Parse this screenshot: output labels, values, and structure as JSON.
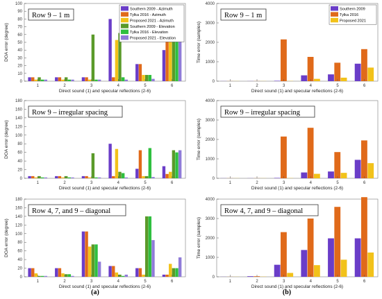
{
  "subfigure_labels": [
    "(a)",
    "(b)"
  ],
  "chart_data": [
    {
      "type": "bar",
      "title": "Row 9 – 1 m",
      "xlabel": "Direct sound (1) and specular reflections (2-6)",
      "ylabel": "DOA error (degree)",
      "categories": [
        "1",
        "2",
        "3",
        "4",
        "5",
        "6"
      ],
      "ylim": [
        0,
        100
      ],
      "yticks": [
        0,
        10,
        20,
        30,
        40,
        50,
        60,
        70,
        80,
        90,
        100
      ],
      "grid": false,
      "legend": "top-right",
      "series": [
        {
          "name": "Southern 2009 - Azimuth",
          "color": "#6a3dc8",
          "values": [
            5,
            5,
            5,
            80,
            22,
            40
          ]
        },
        {
          "name": "Tylka 2016 - Azimuth",
          "color": "#e06a1a",
          "values": [
            5,
            5,
            5,
            5,
            22,
            80
          ]
        },
        {
          "name": "Proposed 2021 - Azimuth",
          "color": "#f2c21a",
          "values": [
            2,
            2,
            2,
            53,
            8,
            65
          ]
        },
        {
          "name": "Southern 2009 - Elevation",
          "color": "#5a9a2a",
          "values": [
            5,
            5,
            60,
            62,
            8,
            62
          ]
        },
        {
          "name": "Tylka 2016 - Elevation",
          "color": "#2fbf3f",
          "values": [
            2,
            2,
            2,
            5,
            8,
            62
          ]
        },
        {
          "name": "Proposed 2021 - Elevation",
          "color": "#8f7bd8",
          "values": [
            2,
            2,
            2,
            2,
            3,
            62
          ]
        }
      ]
    },
    {
      "type": "bar",
      "title": "Row 9 – 1 m",
      "xlabel": "Direct sound (1) and specular reflections (2-6)",
      "ylabel": "Time error (samples)",
      "categories": [
        "1",
        "2",
        "3",
        "4",
        "5",
        "6"
      ],
      "ylim": [
        0,
        4000
      ],
      "yticks": [
        0,
        1000,
        2000,
        3000,
        4000
      ],
      "grid": false,
      "legend": "top-right",
      "series": [
        {
          "name": "Southern 2009",
          "color": "#6a3dc8",
          "values": [
            5,
            5,
            20,
            300,
            350,
            900
          ]
        },
        {
          "name": "Tylka 2016",
          "color": "#e06a1a",
          "values": [
            5,
            5,
            2150,
            1250,
            950,
            1650
          ]
        },
        {
          "name": "Proposed 2021",
          "color": "#f2c21a",
          "values": [
            5,
            5,
            10,
            120,
            180,
            700
          ]
        }
      ]
    },
    {
      "type": "bar",
      "title": "Row 9 – irregular spacing",
      "xlabel": "Direct sound (1) and specular reflections (2-6)",
      "ylabel": "DOA error (degree)",
      "categories": [
        "1",
        "2",
        "3",
        "4",
        "5",
        "6"
      ],
      "ylim": [
        0,
        180
      ],
      "yticks": [
        0,
        20,
        40,
        60,
        80,
        100,
        120,
        140,
        160,
        180
      ],
      "grid": false,
      "legend": "none",
      "series": [
        {
          "name": "",
          "color": "#6a3dc8",
          "values": [
            5,
            5,
            5,
            80,
            22,
            28
          ]
        },
        {
          "name": "",
          "color": "#e06a1a",
          "values": [
            5,
            5,
            5,
            5,
            65,
            10
          ]
        },
        {
          "name": "",
          "color": "#f2c21a",
          "values": [
            2,
            2,
            2,
            68,
            5,
            15
          ]
        },
        {
          "name": "",
          "color": "#5a9a2a",
          "values": [
            5,
            5,
            58,
            15,
            5,
            65
          ]
        },
        {
          "name": "",
          "color": "#2fbf3f",
          "values": [
            2,
            2,
            2,
            12,
            70,
            60
          ]
        },
        {
          "name": "",
          "color": "#8f7bd8",
          "values": [
            2,
            2,
            2,
            2,
            3,
            65
          ]
        }
      ]
    },
    {
      "type": "bar",
      "title": "Row 9 – irregular spacing",
      "xlabel": "Direct sound (1) and specular reflections (2-6)",
      "ylabel": "Time error (samples)",
      "categories": [
        "1",
        "2",
        "3",
        "4",
        "5",
        "6"
      ],
      "ylim": [
        0,
        4000
      ],
      "yticks": [
        0,
        1000,
        2000,
        3000,
        4000
      ],
      "grid": false,
      "legend": "none",
      "series": [
        {
          "name": "",
          "color": "#6a3dc8",
          "values": [
            5,
            5,
            20,
            300,
            350,
            950
          ]
        },
        {
          "name": "",
          "color": "#e06a1a",
          "values": [
            5,
            5,
            2150,
            2600,
            1350,
            1950
          ]
        },
        {
          "name": "",
          "color": "#f2c21a",
          "values": [
            5,
            5,
            10,
            230,
            280,
            780
          ]
        }
      ]
    },
    {
      "type": "bar",
      "title": "Row 4, 7, and 9 – diagonal",
      "xlabel": "Direct sound (1) and specular reflections (2-6)",
      "ylabel": "DOA error (degree)",
      "categories": [
        "1",
        "2",
        "3",
        "4",
        "5",
        "6"
      ],
      "ylim": [
        0,
        180
      ],
      "yticks": [
        0,
        20,
        40,
        60,
        80,
        100,
        120,
        140,
        160,
        180
      ],
      "grid": false,
      "legend": "none",
      "series": [
        {
          "name": "",
          "color": "#6a3dc8",
          "values": [
            20,
            20,
            105,
            25,
            20,
            5
          ]
        },
        {
          "name": "",
          "color": "#e06a1a",
          "values": [
            20,
            20,
            105,
            25,
            20,
            5
          ]
        },
        {
          "name": "",
          "color": "#f2c21a",
          "values": [
            8,
            8,
            70,
            10,
            5,
            30
          ]
        },
        {
          "name": "",
          "color": "#5a9a2a",
          "values": [
            2,
            6,
            75,
            5,
            140,
            20
          ]
        },
        {
          "name": "",
          "color": "#2fbf3f",
          "values": [
            2,
            6,
            75,
            2,
            140,
            20
          ]
        },
        {
          "name": "",
          "color": "#8f7bd8",
          "values": [
            2,
            2,
            35,
            5,
            85,
            45
          ]
        }
      ]
    },
    {
      "type": "bar",
      "title": "Row 4, 7, and 9 – diagonal",
      "xlabel": "Direct sound (1) and specular reflections (2-6)",
      "ylabel": "Time error (samples)",
      "categories": [
        "1",
        "2",
        "3",
        "4",
        "5",
        "6"
      ],
      "ylim": [
        0,
        4000
      ],
      "yticks": [
        0,
        1000,
        2000,
        3000,
        4000
      ],
      "grid": false,
      "legend": "none",
      "series": [
        {
          "name": "",
          "color": "#6a3dc8",
          "values": [
            5,
            30,
            620,
            1380,
            1980,
            1980
          ]
        },
        {
          "name": "",
          "color": "#e06a1a",
          "values": [
            5,
            30,
            2300,
            3000,
            3600,
            4100
          ]
        },
        {
          "name": "",
          "color": "#f2c21a",
          "values": [
            5,
            10,
            200,
            600,
            880,
            1250
          ]
        }
      ]
    }
  ]
}
